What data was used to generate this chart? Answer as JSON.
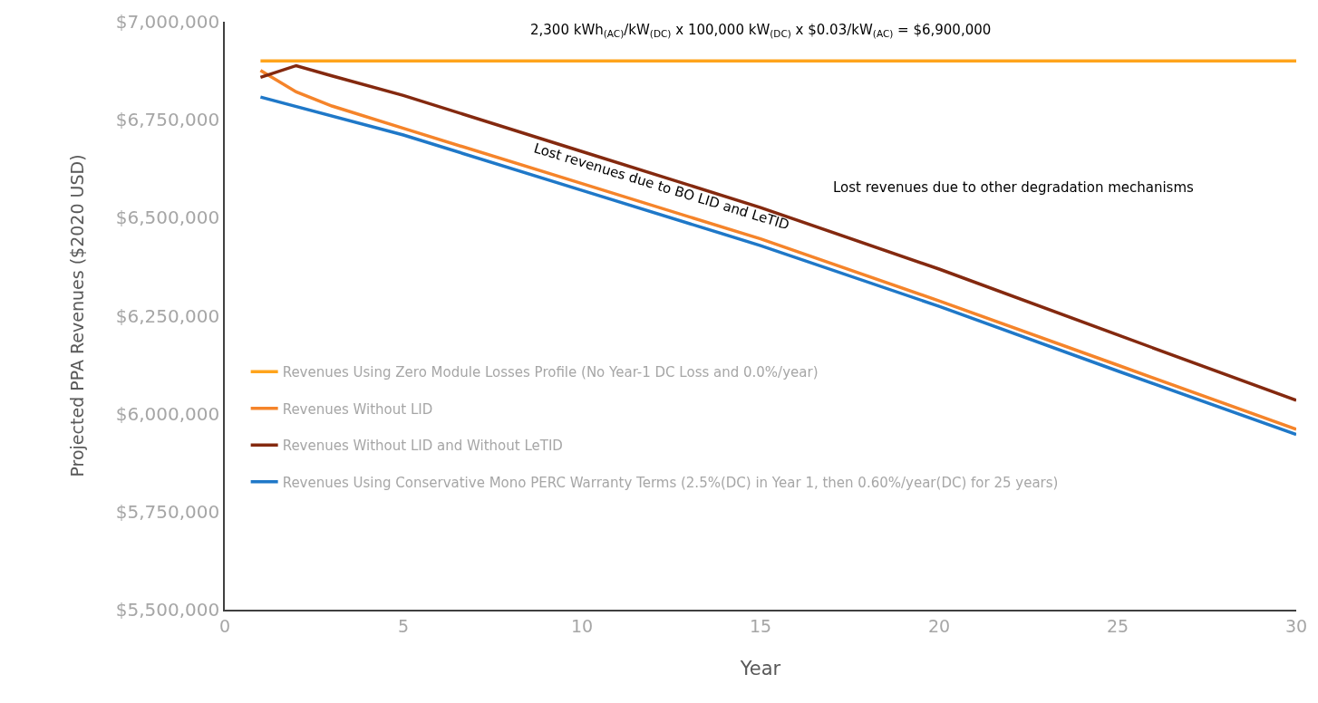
{
  "chart_data": {
    "type": "line",
    "xlabel": "Year",
    "ylabel": "Projected PPA Revenues ($2020 USD)",
    "xlim": [
      0,
      30
    ],
    "xticks": [
      0,
      5,
      10,
      15,
      20,
      25,
      30
    ],
    "ylim": [
      5500000,
      7000000
    ],
    "yticks": [
      {
        "value": 5500000,
        "label": "$5,500,000"
      },
      {
        "value": 5750000,
        "label": "$5,750,000"
      },
      {
        "value": 6000000,
        "label": "$6,000,000"
      },
      {
        "value": 6250000,
        "label": "$6,250,000"
      },
      {
        "value": 6500000,
        "label": "$6,500,000"
      },
      {
        "value": 6750000,
        "label": "$6,750,000"
      },
      {
        "value": 7000000,
        "label": "$7,000,000"
      }
    ],
    "legend": "bottom left",
    "marker": "none",
    "line_style": "solid",
    "series": [
      {
        "name": "Revenues Using Zero Module Losses Profile (No Year-1 DC Loss and 0.0%/year)",
        "color": "#ffa41c",
        "x": [
          1,
          30
        ],
        "values": [
          6900000,
          6900000
        ]
      },
      {
        "name": "Revenues Without LID",
        "color": "#f5842a",
        "x": [
          1,
          2,
          3,
          5,
          10,
          15,
          20,
          25,
          30
        ],
        "values": [
          6876000,
          6821000,
          6785000,
          6728000,
          6587000,
          6446000,
          6288000,
          6124000,
          5960000
        ]
      },
      {
        "name": "Revenues Without LID and Without LeTID",
        "color": "#84290f",
        "x": [
          1,
          2,
          3,
          5,
          10,
          15,
          20,
          25,
          30
        ],
        "values": [
          6858000,
          6888000,
          6862000,
          6812000,
          6669000,
          6526000,
          6369000,
          6201000,
          6034000
        ]
      },
      {
        "name": "Revenues Using Conservative Mono PERC Warranty Terms (2.5%(DC) in Year 1, then 0.60%/year(DC) for 25 years)",
        "color": "#1f78c8",
        "x": [
          1,
          5,
          10,
          15,
          20,
          25,
          30
        ],
        "values": [
          6808000,
          6711000,
          6570000,
          6429000,
          6274000,
          6109000,
          5947000
        ]
      }
    ],
    "annotations": [
      "2,300 kWh$_{(AC)}$/kW$_{(DC)}$ x 100,000 kW$_{(DC)}$ x $0.03/kW$_{(AC)}$ = $6,900,000",
      "Lost revenues due to BO LID and LeTID",
      "Lost revenues due to other degradation mechanisms"
    ]
  }
}
